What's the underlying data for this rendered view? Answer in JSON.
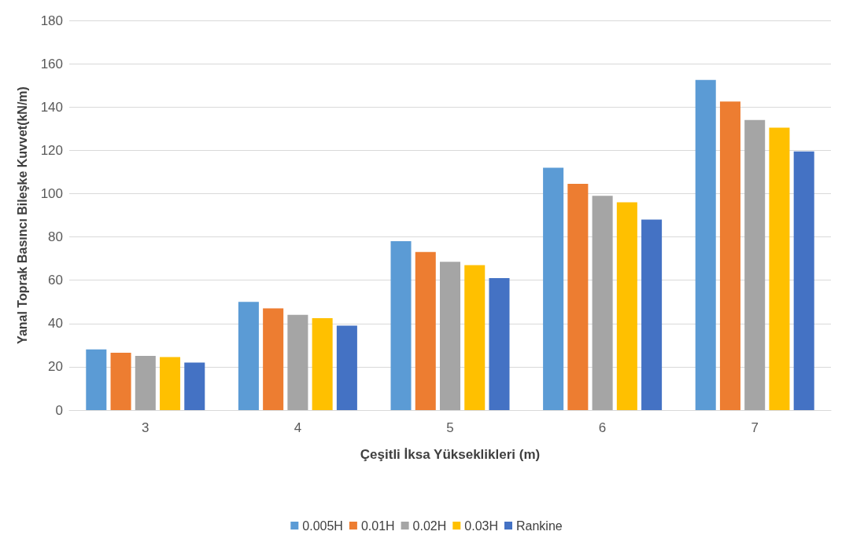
{
  "chart_data": {
    "type": "bar",
    "xlabel": "Çeşitli İksa Yükseklikleri (m)",
    "ylabel": "Yanal Toprak Basıncı Bileşke Kuvvet(kN/m)",
    "categories": [
      "3",
      "4",
      "5",
      "6",
      "7"
    ],
    "series": [
      {
        "name": "0.005H",
        "color": "#5b9bd5",
        "values": [
          28,
          50,
          78,
          112,
          152.5
        ]
      },
      {
        "name": "0.01H",
        "color": "#ed7d31",
        "values": [
          26.5,
          47,
          73,
          104.5,
          142.5
        ]
      },
      {
        "name": "0.02H",
        "color": "#a5a5a5",
        "values": [
          25,
          44,
          68.5,
          99,
          134
        ]
      },
      {
        "name": "0.03H",
        "color": "#ffc000",
        "values": [
          24.5,
          42.5,
          67,
          96,
          130.5
        ]
      },
      {
        "name": "Rankine",
        "color": "#4472c4",
        "values": [
          22,
          39,
          61,
          88,
          119.5
        ]
      }
    ],
    "ylim": [
      0,
      180
    ],
    "yticks": [
      0,
      20,
      40,
      60,
      80,
      100,
      120,
      140,
      160,
      180
    ],
    "grid": "y",
    "legend": "bottom"
  }
}
